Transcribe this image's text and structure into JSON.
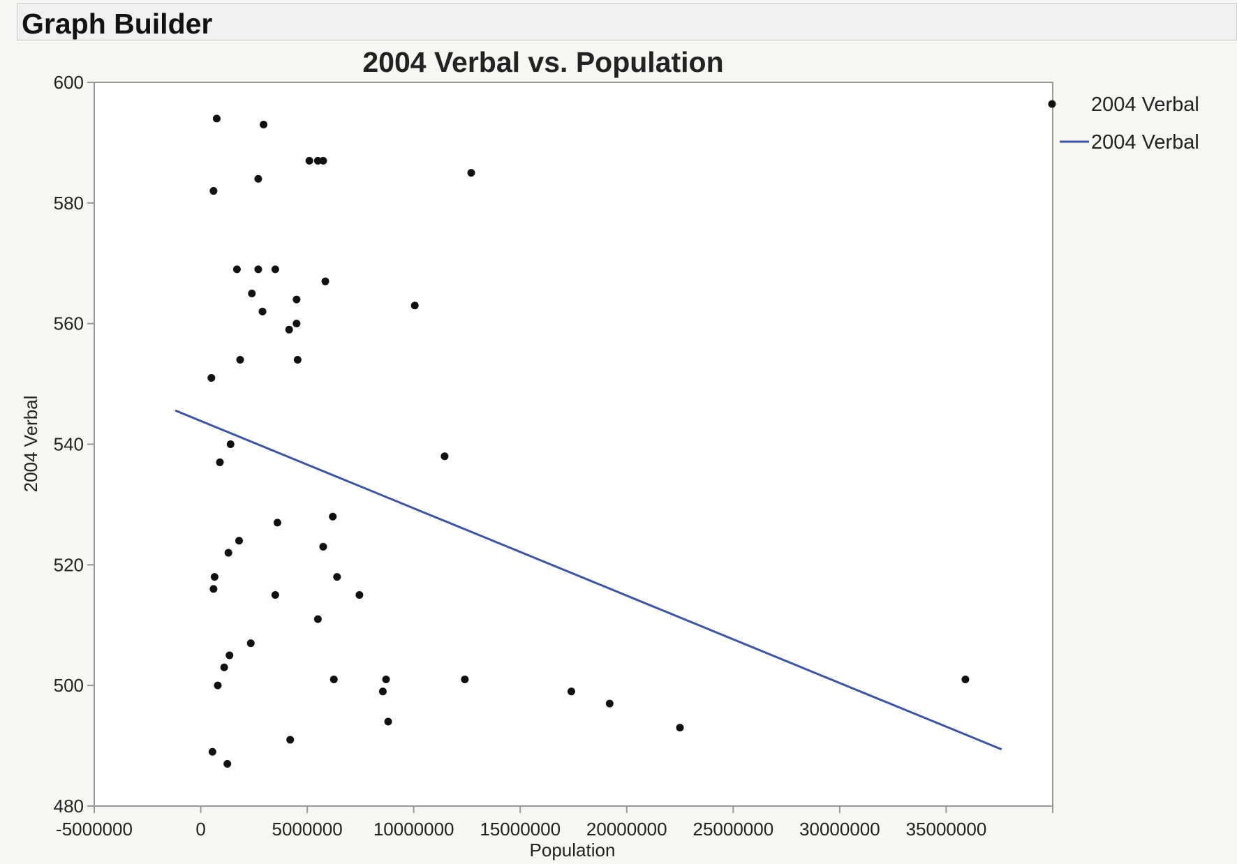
{
  "window": {
    "title": "Graph Builder"
  },
  "chart_data": {
    "type": "scatter",
    "title": "2004 Verbal vs. Population",
    "xlabel": "Population",
    "ylabel": "2004 Verbal",
    "xlim": [
      -5000000,
      40000000
    ],
    "ylim": [
      480,
      600
    ],
    "xticks": [
      -5000000,
      0,
      5000000,
      10000000,
      15000000,
      20000000,
      25000000,
      30000000,
      35000000
    ],
    "yticks": [
      480,
      500,
      520,
      540,
      560,
      580,
      600
    ],
    "grid": false,
    "legend_position": "right",
    "legend": [
      {
        "label": "2004 Verbal",
        "marker": "point"
      },
      {
        "label": "2004 Verbal",
        "marker": "line"
      }
    ],
    "colors": {
      "points": "#111111",
      "fit_line": "#3d55a0",
      "frame": "#999999"
    },
    "series": [
      {
        "name": "2004 Verbal",
        "kind": "points",
        "points": [
          [
            750000,
            594
          ],
          [
            2950000,
            593
          ],
          [
            5100000,
            587
          ],
          [
            5500000,
            587
          ],
          [
            5750000,
            587
          ],
          [
            12700000,
            585
          ],
          [
            2700000,
            584
          ],
          [
            600000,
            582
          ],
          [
            1700000,
            569
          ],
          [
            2700000,
            569
          ],
          [
            3500000,
            569
          ],
          [
            5850000,
            567
          ],
          [
            2400000,
            565
          ],
          [
            4500000,
            564
          ],
          [
            10050000,
            563
          ],
          [
            2900000,
            562
          ],
          [
            4500000,
            560
          ],
          [
            4150000,
            559
          ],
          [
            1850000,
            554
          ],
          [
            4550000,
            554
          ],
          [
            500000,
            551
          ],
          [
            1400000,
            540
          ],
          [
            900000,
            537
          ],
          [
            11450000,
            538
          ],
          [
            6200000,
            528
          ],
          [
            3600000,
            527
          ],
          [
            1800000,
            524
          ],
          [
            5750000,
            523
          ],
          [
            1300000,
            522
          ],
          [
            650000,
            518
          ],
          [
            6400000,
            518
          ],
          [
            600000,
            516
          ],
          [
            3500000,
            515
          ],
          [
            7450000,
            515
          ],
          [
            5500000,
            511
          ],
          [
            2350000,
            507
          ],
          [
            1350000,
            505
          ],
          [
            1100000,
            503
          ],
          [
            6250000,
            501
          ],
          [
            8700000,
            501
          ],
          [
            12400000,
            501
          ],
          [
            35900000,
            501
          ],
          [
            800000,
            500
          ],
          [
            8550000,
            499
          ],
          [
            17400000,
            499
          ],
          [
            19200000,
            497
          ],
          [
            8800000,
            494
          ],
          [
            22500000,
            493
          ],
          [
            4200000,
            491
          ],
          [
            550000,
            489
          ],
          [
            1250000,
            487
          ]
        ]
      },
      {
        "name": "2004 Verbal",
        "kind": "line",
        "x": [
          -1200000,
          37600000
        ],
        "y": [
          545.6,
          489.4
        ]
      }
    ]
  }
}
